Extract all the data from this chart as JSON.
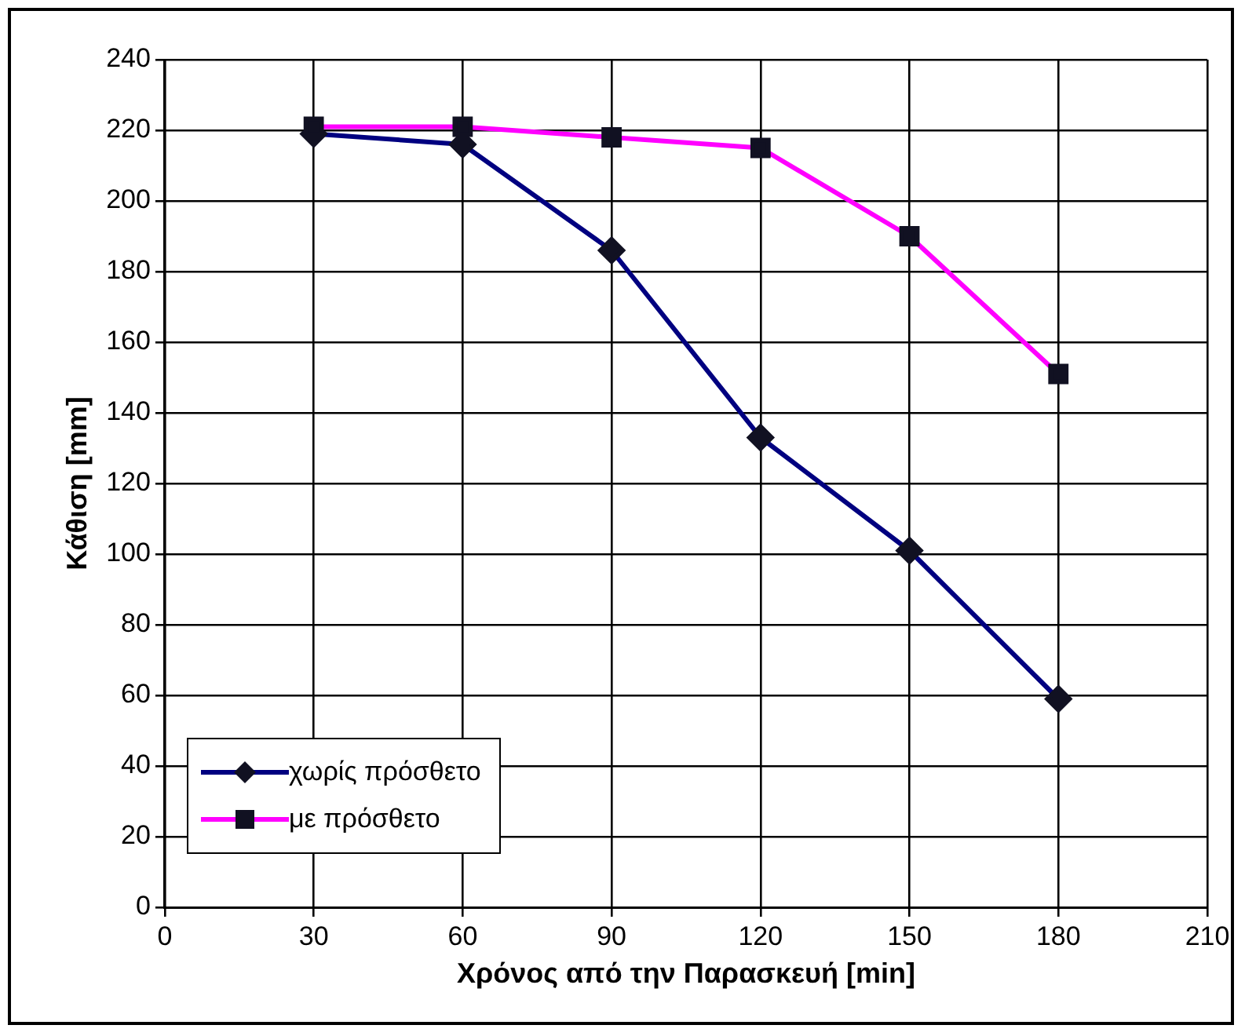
{
  "chart_data": {
    "type": "line",
    "xlabel": "Χρόνος από την Παρασκευή [min]",
    "ylabel": "Κάθιση [mm]",
    "x": [
      30,
      60,
      90,
      120,
      150,
      180
    ],
    "series": [
      {
        "name": "χωρίς πρόσθετο",
        "color": "#000080",
        "marker": "diamond",
        "values": [
          219,
          216,
          186,
          133,
          101,
          59
        ]
      },
      {
        "name": "με πρόσθετο",
        "color": "#ff00ff",
        "marker": "square",
        "values": [
          221,
          221,
          218,
          215,
          190,
          151
        ]
      }
    ],
    "xlim": [
      0,
      210
    ],
    "xticks": [
      0,
      30,
      60,
      90,
      120,
      150,
      180,
      210
    ],
    "ylim": [
      0,
      240
    ],
    "yticks": [
      0,
      20,
      40,
      60,
      80,
      100,
      120,
      140,
      160,
      180,
      200,
      220,
      240
    ],
    "grid": true,
    "legend": "bottom left",
    "line_style": "solid"
  }
}
